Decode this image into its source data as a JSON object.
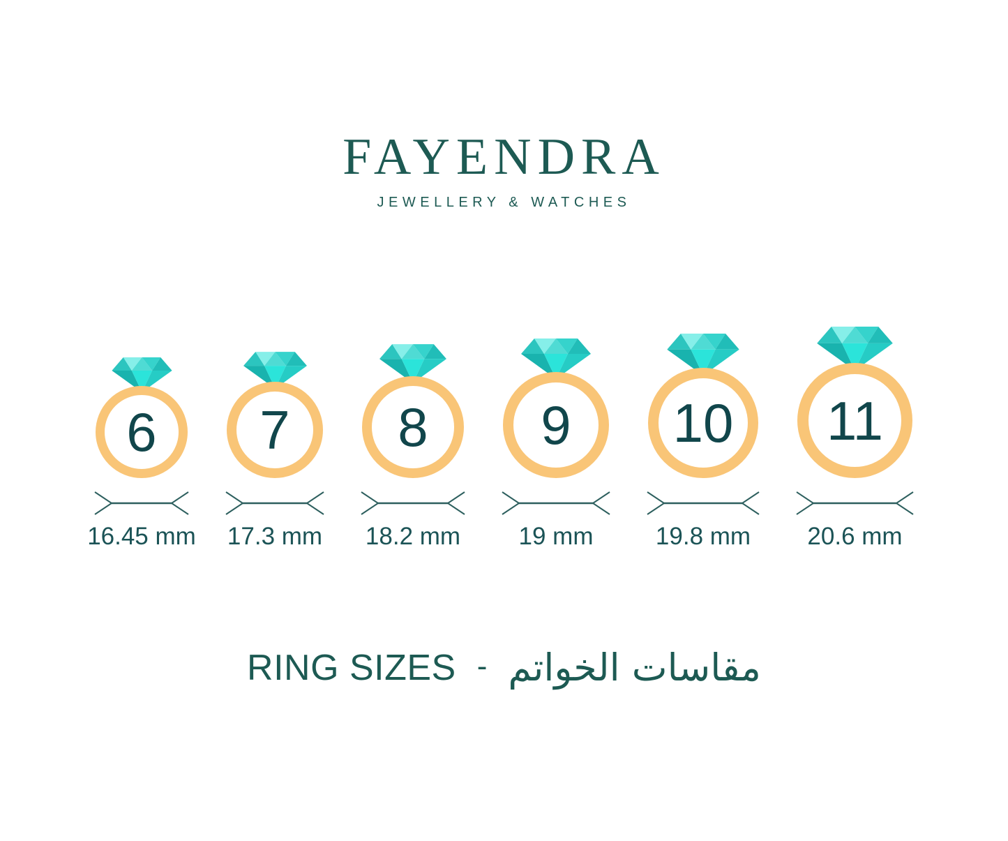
{
  "brand": {
    "name": "FAYENDRA",
    "tagline": "JEWELLERY & WATCHES"
  },
  "rings": [
    {
      "size": "6",
      "diameter_label": "16.45 mm",
      "diameter_mm": 16.45
    },
    {
      "size": "7",
      "diameter_label": "17.3 mm",
      "diameter_mm": 17.3
    },
    {
      "size": "8",
      "diameter_label": "18.2 mm",
      "diameter_mm": 18.2
    },
    {
      "size": "9",
      "diameter_label": "19 mm",
      "diameter_mm": 19
    },
    {
      "size": "10",
      "diameter_label": "19.8 mm",
      "diameter_mm": 19.8
    },
    {
      "size": "11",
      "diameter_label": "20.6 mm",
      "diameter_mm": 20.6
    }
  ],
  "footer": {
    "title_en": "RING SIZES",
    "separator": "-",
    "title_ar": "مقاسات الخواتم"
  },
  "colors": {
    "brand_teal": "#1d5a53",
    "number_teal": "#11464b",
    "label_teal": "#1b5356",
    "measure_stroke": "#2d5f5e",
    "band_gold": "#f9c577",
    "gem_facets": [
      "#2cc5bf",
      "#86efe9",
      "#4fdbd4",
      "#36d3cc",
      "#21bdb8",
      "#19b3ae",
      "#2be4da",
      "#26ccc5"
    ]
  }
}
